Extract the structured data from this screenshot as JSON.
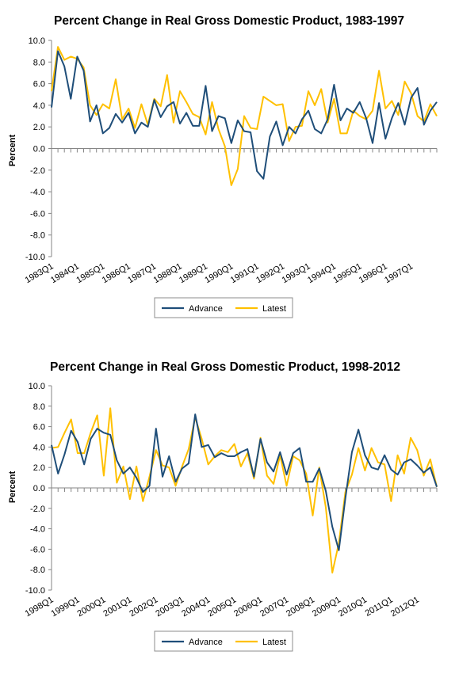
{
  "colors": {
    "advance": "#1F4E79",
    "latest": "#FFC000",
    "axis": "#868686",
    "text": "#000000"
  },
  "chart_data": [
    {
      "type": "line",
      "title": "Percent Change in Real Gross Domestic Product, 1983-1997",
      "ylabel": "Percent",
      "ylim": [
        -10,
        10
      ],
      "yticks": [
        "10.0",
        "8.0",
        "6.0",
        "4.0",
        "2.0",
        "0.0",
        "-2.0",
        "-4.0",
        "-6.0",
        "-8.0",
        "-10.0"
      ],
      "xtick_labels": [
        "1983Q1",
        "1984Q1",
        "1985Q1",
        "1986Q1",
        "1987Q1",
        "1988Q1",
        "1989Q1",
        "1990Q1",
        "1991Q1",
        "1992Q1",
        "1993Q1",
        "1994Q1",
        "1995Q1",
        "1996Q1",
        "1997Q1"
      ],
      "points_per_year": 4,
      "legend": {
        "position": "bottom",
        "labels": [
          "Advance",
          "Latest"
        ]
      },
      "series": [
        {
          "name": "Advance",
          "values": [
            3.8,
            9.0,
            7.6,
            4.6,
            8.5,
            7.2,
            2.5,
            4.0,
            1.4,
            1.9,
            3.2,
            2.4,
            3.3,
            1.4,
            2.4,
            2.0,
            4.5,
            2.9,
            3.9,
            4.3,
            2.3,
            3.3,
            2.1,
            2.1,
            5.8,
            1.6,
            3.0,
            2.8,
            0.5,
            2.6,
            1.6,
            1.5,
            -2.1,
            -2.8,
            1.1,
            2.5,
            0.3,
            2.0,
            1.4,
            2.7,
            3.5,
            1.8,
            1.4,
            2.7,
            5.9,
            2.6,
            3.7,
            3.3,
            4.3,
            2.8,
            0.5,
            4.2,
            0.9,
            2.8,
            4.2,
            2.2,
            4.7,
            5.6,
            2.2,
            3.5,
            4.3
          ]
        },
        {
          "name": "Latest",
          "values": [
            5.3,
            9.4,
            8.2,
            8.5,
            8.3,
            7.5,
            4.0,
            3.1,
            4.1,
            3.7,
            6.4,
            2.7,
            3.7,
            1.9,
            4.1,
            2.2,
            4.6,
            3.9,
            6.8,
            2.4,
            5.3,
            4.3,
            3.2,
            2.9,
            1.3,
            4.3,
            1.8,
            0.2,
            -3.4,
            -1.9,
            3.0,
            1.9,
            1.8,
            4.8,
            4.4,
            4.0,
            4.1,
            0.7,
            2.0,
            2.1,
            5.3,
            4.0,
            5.5,
            2.4,
            4.6,
            1.4,
            1.4,
            3.5,
            3.0,
            2.7,
            3.5,
            7.2,
            3.7,
            4.4,
            3.1,
            6.2,
            5.1,
            3.0,
            2.5,
            4.1,
            3.0
          ]
        }
      ]
    },
    {
      "type": "line",
      "title": "Percent Change in Real Gross Domestic Product, 1998-2012",
      "ylabel": "Percent",
      "ylim": [
        -10,
        10
      ],
      "yticks": [
        "10.0",
        "8.0",
        "6.0",
        "4.0",
        "2.0",
        "0.0",
        "-2.0",
        "-4.0",
        "-6.0",
        "-8.0",
        "-10.0"
      ],
      "xtick_labels": [
        "1998Q1",
        "1999Q1",
        "2000Q1",
        "2001Q1",
        "2002Q1",
        "2003Q1",
        "2004Q1",
        "2005Q1",
        "2006Q1",
        "2007Q1",
        "2008Q1",
        "2009Q1",
        "2010Q1",
        "2011Q1",
        "2012Q1"
      ],
      "points_per_year": 4,
      "legend": {
        "position": "bottom",
        "labels": [
          "Advance",
          "Latest"
        ]
      },
      "series": [
        {
          "name": "Advance",
          "values": [
            4.2,
            1.4,
            3.3,
            5.6,
            4.5,
            2.3,
            4.8,
            5.8,
            5.4,
            5.2,
            2.7,
            1.4,
            2.0,
            1.0,
            -0.4,
            0.2,
            5.8,
            1.1,
            3.1,
            0.6,
            1.9,
            2.4,
            7.2,
            4.0,
            4.2,
            3.0,
            3.4,
            3.1,
            3.1,
            3.5,
            3.8,
            1.1,
            4.8,
            2.5,
            1.6,
            3.5,
            1.3,
            3.4,
            3.9,
            0.6,
            0.6,
            1.9,
            -0.3,
            -3.8,
            -6.1,
            -1.0,
            3.5,
            5.7,
            3.2,
            2.0,
            1.8,
            3.2,
            1.8,
            1.3,
            2.5,
            2.8,
            2.2,
            1.5,
            2.0,
            0.1
          ]
        },
        {
          "name": "Latest",
          "values": [
            3.9,
            4.0,
            5.4,
            6.7,
            3.4,
            3.4,
            5.4,
            7.1,
            1.2,
            7.8,
            0.5,
            2.1,
            -1.1,
            2.1,
            -1.3,
            1.1,
            3.7,
            2.2,
            2.0,
            0.2,
            2.1,
            3.8,
            6.9,
            4.8,
            2.3,
            3.1,
            3.7,
            3.5,
            4.3,
            2.1,
            3.4,
            0.9,
            4.9,
            1.2,
            0.4,
            3.2,
            0.2,
            3.1,
            2.7,
            1.4,
            -2.7,
            2.0,
            -1.9,
            -8.3,
            -5.4,
            -0.4,
            1.3,
            3.9,
            1.7,
            3.9,
            2.5,
            2.3,
            -1.3,
            3.2,
            1.4,
            4.9,
            3.7,
            1.2,
            2.8,
            0.1
          ]
        }
      ]
    }
  ]
}
